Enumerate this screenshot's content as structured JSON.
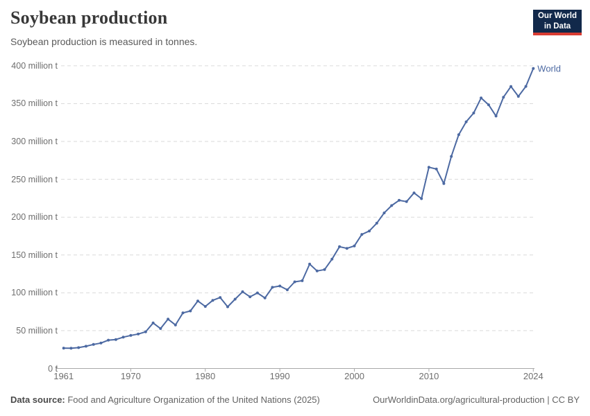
{
  "header": {
    "title": "Soybean production",
    "subtitle": "Soybean production is measured in tonnes."
  },
  "logo": {
    "line1": "Our World",
    "line2": "in Data",
    "bg": "#12294B",
    "accent": "#D93C32"
  },
  "footer": {
    "source_label": "Data source:",
    "source_text": " Food and Agriculture Organization of the United Nations (2025)",
    "link": "OurWorldinData.org/agricultural-production | CC BY"
  },
  "chart_data": {
    "type": "line",
    "title": "Soybean production",
    "unit": "tonnes",
    "grid": "horizontal-dashed",
    "legend_position": "end-of-line",
    "line_color": "#4C69A2",
    "xlim": [
      1961,
      2024
    ],
    "ylim": [
      0,
      400
    ],
    "yticks": [
      {
        "value": 0,
        "label": "0 t"
      },
      {
        "value": 50,
        "label": "50 million t"
      },
      {
        "value": 100,
        "label": "100 million t"
      },
      {
        "value": 150,
        "label": "150 million t"
      },
      {
        "value": 200,
        "label": "200 million t"
      },
      {
        "value": 250,
        "label": "250 million t"
      },
      {
        "value": 300,
        "label": "300 million t"
      },
      {
        "value": 350,
        "label": "350 million t"
      },
      {
        "value": 400,
        "label": "400 million t"
      }
    ],
    "xticks": [
      {
        "year": 1961,
        "label": "1961",
        "tick": false
      },
      {
        "year": 1970,
        "label": "1970",
        "tick": true
      },
      {
        "year": 1980,
        "label": "1980",
        "tick": true
      },
      {
        "year": 1990,
        "label": "1990",
        "tick": true
      },
      {
        "year": 2000,
        "label": "2000",
        "tick": true
      },
      {
        "year": 2010,
        "label": "2010",
        "tick": true
      },
      {
        "year": 2024,
        "label": "2024",
        "tick": true
      }
    ],
    "series": [
      {
        "name": "World",
        "x": [
          1961,
          1962,
          1963,
          1964,
          1965,
          1966,
          1967,
          1968,
          1969,
          1970,
          1971,
          1972,
          1973,
          1974,
          1975,
          1976,
          1977,
          1978,
          1979,
          1980,
          1981,
          1982,
          1983,
          1984,
          1985,
          1986,
          1987,
          1988,
          1989,
          1990,
          1991,
          1992,
          1993,
          1994,
          1995,
          1996,
          1997,
          1998,
          1999,
          2000,
          2001,
          2002,
          2003,
          2004,
          2005,
          2006,
          2007,
          2008,
          2009,
          2010,
          2011,
          2012,
          2013,
          2014,
          2015,
          2016,
          2017,
          2018,
          2019,
          2020,
          2021,
          2022,
          2023,
          2024
        ],
        "values": [
          26.9,
          26.8,
          27.6,
          29.4,
          31.8,
          33.6,
          37.5,
          38.3,
          41.4,
          43.7,
          45.5,
          48.5,
          60.2,
          52.8,
          65.2,
          57.5,
          73.5,
          76.0,
          89.2,
          82.0,
          90.1,
          93.8,
          81.5,
          91.6,
          101.4,
          94.7,
          99.9,
          93.2,
          107.3,
          109.0,
          104.0,
          114.5,
          116.0,
          138.0,
          128.9,
          130.7,
          144.5,
          161.0,
          158.8,
          162.0,
          177.2,
          181.7,
          192.0,
          205.6,
          215.3,
          222.3,
          220.5,
          232.1,
          224.5,
          266.0,
          263.6,
          244.3,
          280.3,
          309.0,
          326.0,
          337.6,
          357.5,
          348.5,
          333.6,
          358.5,
          372.7,
          359.6,
          372.8,
          396.4
        ]
      }
    ]
  }
}
